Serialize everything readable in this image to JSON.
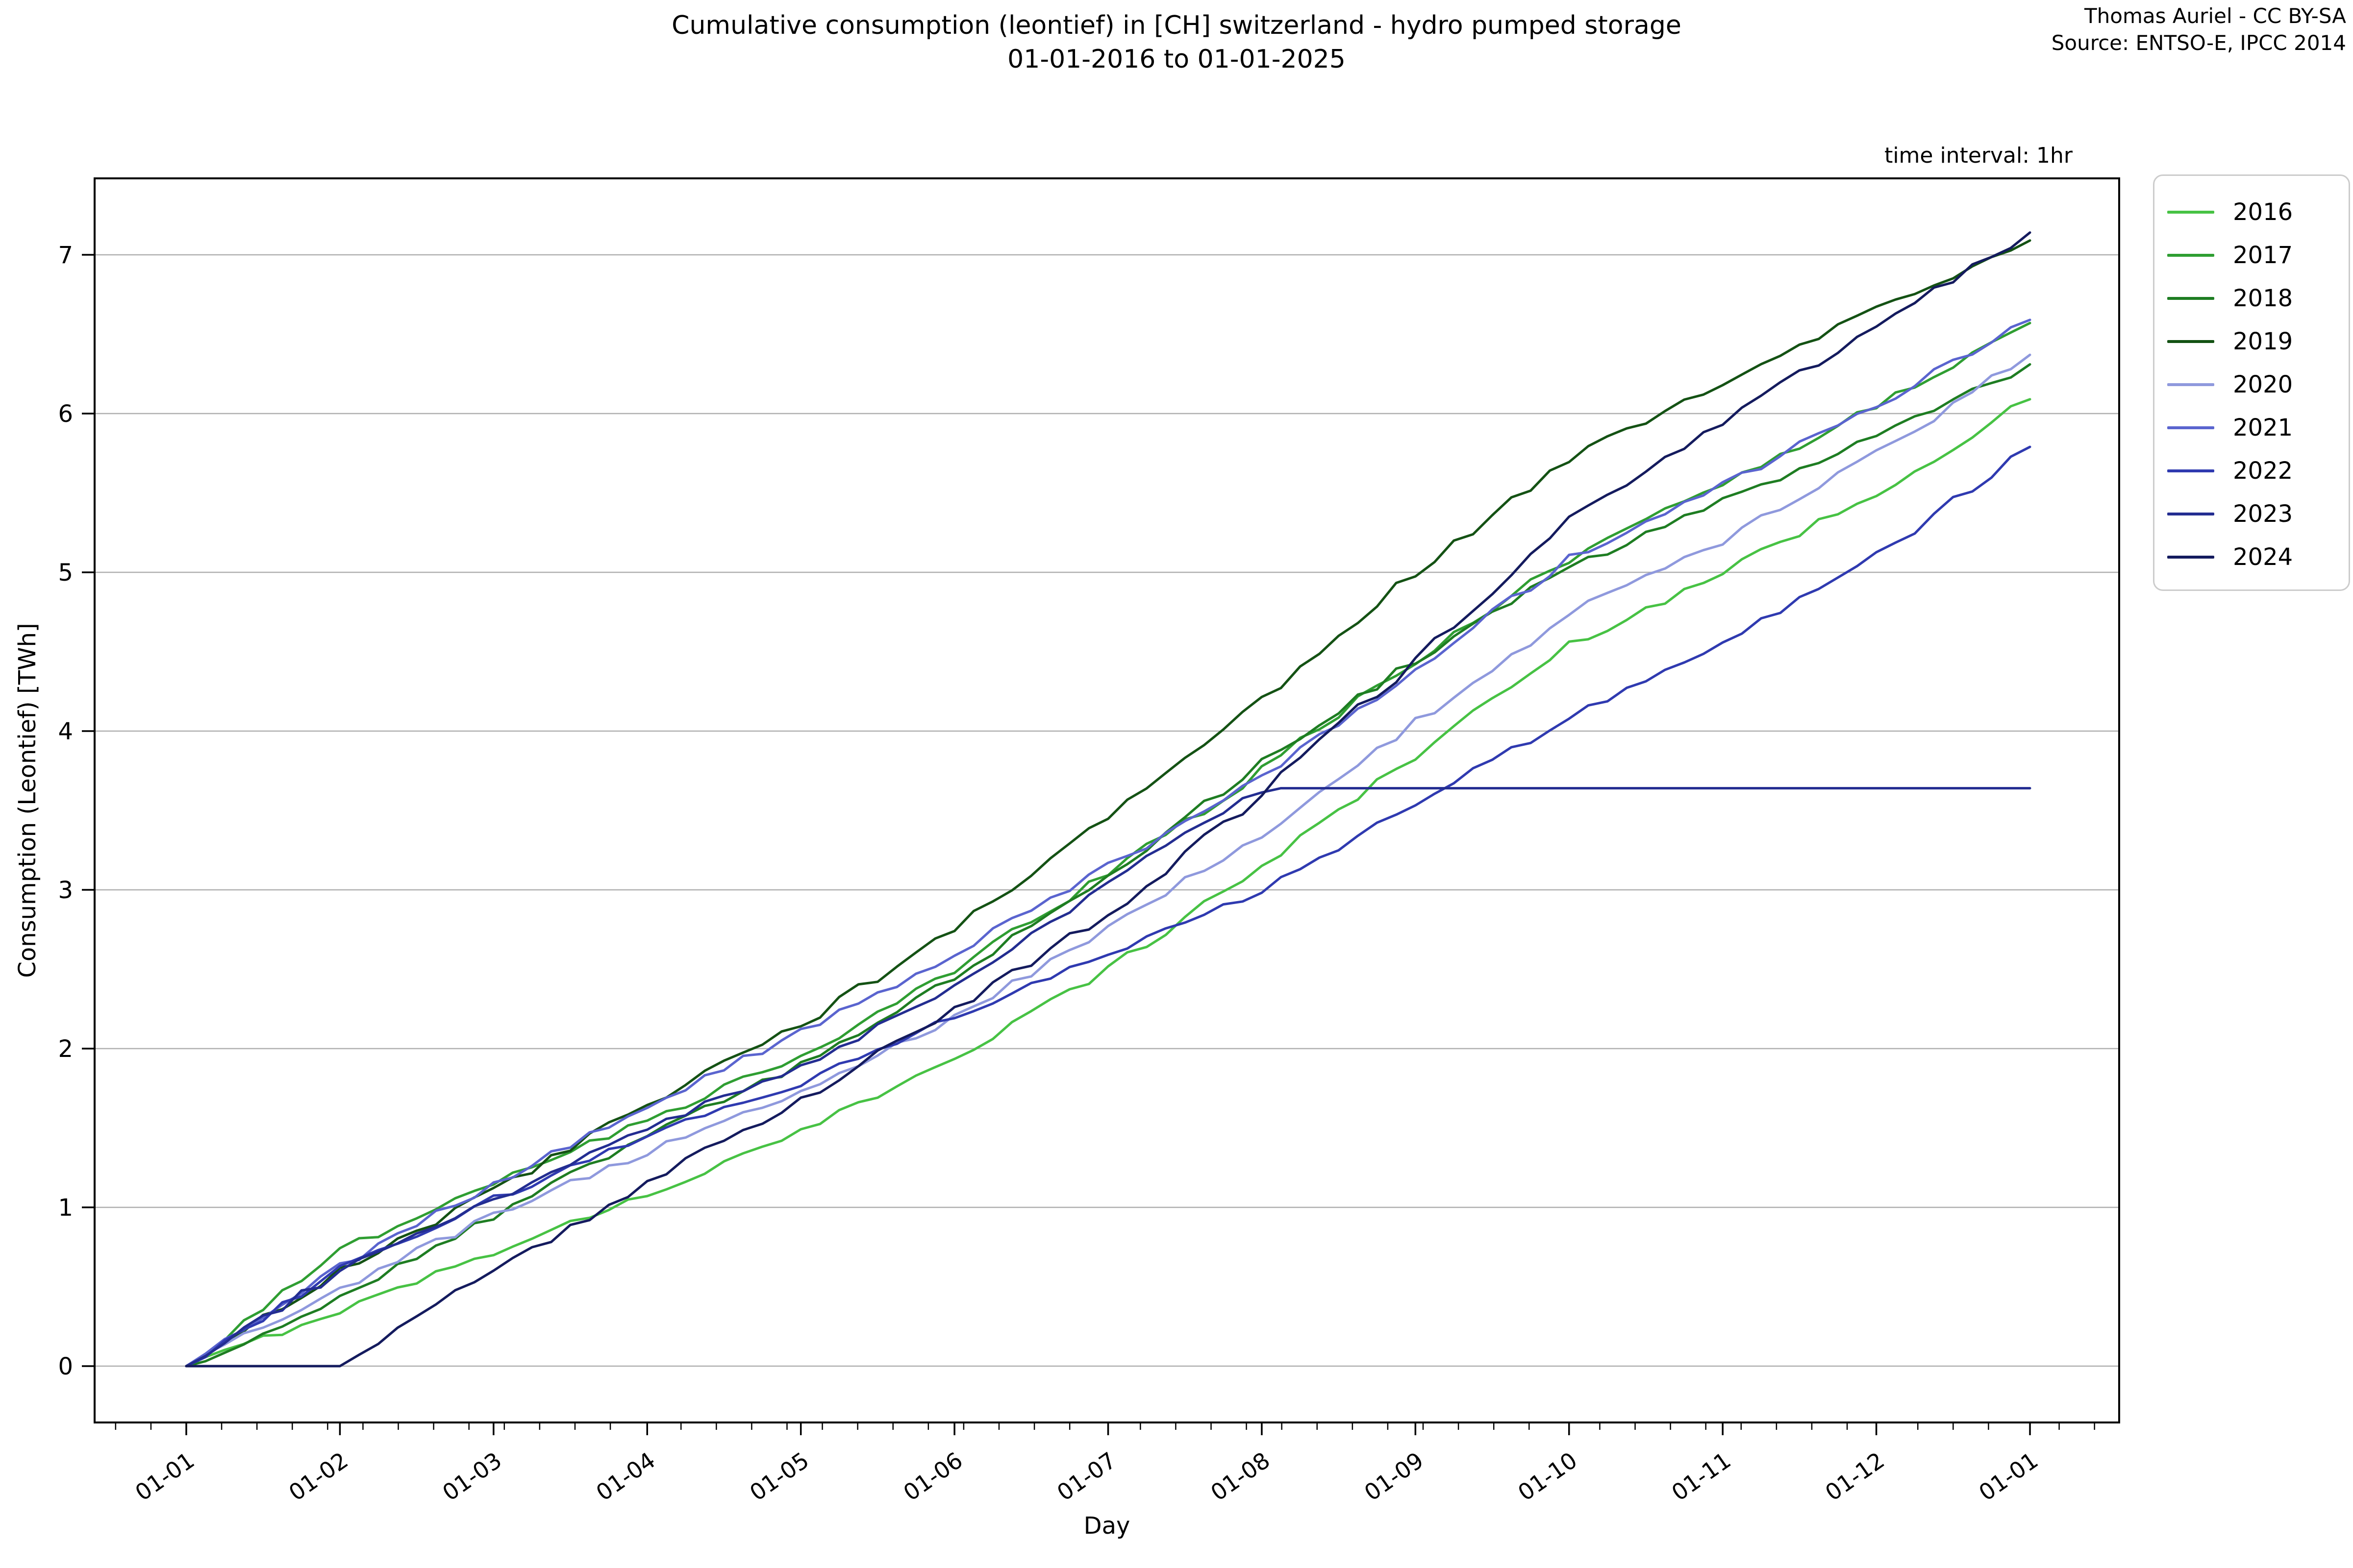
{
  "header": {
    "title_line1": "Cumulative consumption (leontief) in [CH] switzerland - hydro pumped storage",
    "title_line2": "01-01-2016 to 01-01-2025",
    "credit": "Thomas Auriel - CC BY-SA",
    "source": "Source: ENTSO-E, IPCC 2014",
    "time_interval": "time interval: 1hr"
  },
  "chart_data": {
    "type": "line",
    "title": "Cumulative consumption (leontief) in [CH] switzerland - hydro pumped storage 01-01-2016 to 01-01-2025",
    "xlabel": "Day",
    "ylabel": "Consumption (Leontief) [TWh]",
    "x_tick_labels": [
      "01-01",
      "01-02",
      "01-03",
      "01-04",
      "01-05",
      "01-06",
      "01-07",
      "01-08",
      "01-09",
      "01-10",
      "01-11",
      "01-12",
      "01-01"
    ],
    "y_ticks": [
      0,
      1,
      2,
      3,
      4,
      5,
      6,
      7
    ],
    "y_tick_labels": [
      "0",
      "1",
      "2",
      "3",
      "4",
      "5",
      "6",
      "7"
    ],
    "xlim_months": [
      -0.6,
      12.58
    ],
    "ylim": [
      -0.35,
      7.48
    ],
    "grid": "horizontal",
    "grid_color": "#b0b0b0",
    "legend_position": "upper-right-outside",
    "x_months_index": [
      0,
      1,
      2,
      3,
      4,
      5,
      6,
      7,
      8,
      9,
      10,
      11,
      12
    ],
    "series": [
      {
        "name": "2016",
        "color": "#47c244",
        "values": [
          0,
          0.35,
          0.72,
          1.08,
          1.47,
          1.95,
          2.5,
          3.15,
          3.85,
          4.54,
          5.0,
          5.5,
          6.09
        ]
      },
      {
        "name": "2017",
        "color": "#2f9e32",
        "values": [
          0,
          0.73,
          1.15,
          1.55,
          1.95,
          2.5,
          3.1,
          3.75,
          4.45,
          5.09,
          5.55,
          6.05,
          6.57
        ]
      },
      {
        "name": "2018",
        "color": "#1e7d22",
        "values": [
          0,
          0.42,
          0.95,
          1.45,
          1.9,
          2.45,
          3.1,
          3.8,
          4.45,
          5.03,
          5.45,
          5.85,
          6.31
        ]
      },
      {
        "name": "2019",
        "color": "#145214",
        "values": [
          0,
          0.6,
          1.1,
          1.65,
          2.15,
          2.75,
          3.45,
          4.2,
          5.0,
          5.72,
          6.2,
          6.65,
          7.09
        ]
      },
      {
        "name": "2020",
        "color": "#8f99dd",
        "values": [
          0,
          0.49,
          0.95,
          1.35,
          1.73,
          2.2,
          2.75,
          3.35,
          4.05,
          4.74,
          5.2,
          5.75,
          6.37
        ]
      },
      {
        "name": "2021",
        "color": "#5a64cf",
        "values": [
          0,
          0.62,
          1.15,
          1.65,
          2.1,
          2.6,
          3.15,
          3.7,
          4.4,
          5.08,
          5.55,
          6.05,
          6.59
        ]
      },
      {
        "name": "2022",
        "color": "#2f3ab0",
        "values": [
          0,
          0.62,
          1.05,
          1.45,
          1.78,
          2.2,
          2.6,
          3.0,
          3.55,
          4.08,
          4.55,
          5.1,
          5.79
        ]
      },
      {
        "name": "2023",
        "color": "#232d91",
        "values": [
          0,
          0.6,
          1.05,
          1.5,
          1.88,
          2.4,
          3.05,
          3.64,
          3.64,
          3.64,
          3.64,
          3.64,
          3.64
        ]
      },
      {
        "name": "2024",
        "color": "#141b5e",
        "values": [
          0,
          0.0,
          0.6,
          1.15,
          1.68,
          2.25,
          2.85,
          3.6,
          4.45,
          5.34,
          5.95,
          6.55,
          7.14
        ]
      }
    ]
  }
}
